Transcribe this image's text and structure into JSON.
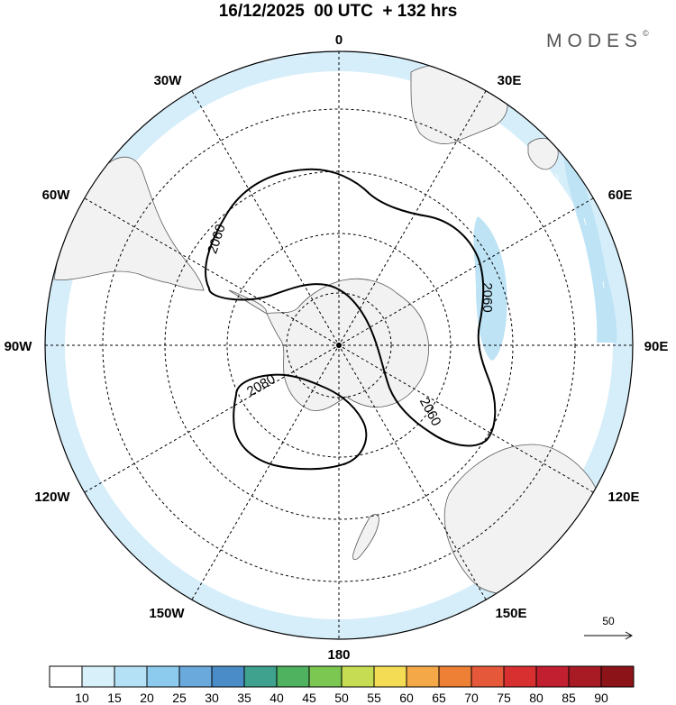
{
  "header": {
    "title": "16/12/2025  00 UTC  + 132 hrs",
    "brand": "MODES",
    "brand_mark": "©"
  },
  "map": {
    "projection": "south polar stereographic",
    "longitude_labels": {
      "lon_0": "0",
      "lon_30e": "30E",
      "lon_60e": "60E",
      "lon_90e": "90E",
      "lon_120e": "120E",
      "lon_150e": "150E",
      "lon_180": "180",
      "lon_150w": "150W",
      "lon_120w": "120W",
      "lon_90w": "90W",
      "lon_60w": "60W",
      "lon_30w": "30W"
    },
    "contour_labels": {
      "west": "2060",
      "east": "2060",
      "south": "2060",
      "low": "2080"
    },
    "wind_reference": {
      "value": "50",
      "icon": "arrow-right-icon"
    }
  },
  "colorbar": {
    "labels": [
      "10",
      "15",
      "20",
      "25",
      "30",
      "35",
      "40",
      "45",
      "50",
      "55",
      "60",
      "65",
      "70",
      "75",
      "80",
      "85",
      "90"
    ],
    "colors": [
      "#ffffff",
      "#d7f0fa",
      "#b4e1f5",
      "#8ccbee",
      "#6aa9dc",
      "#4a8cc8",
      "#3ea28e",
      "#4eb25e",
      "#7cc652",
      "#c6dc52",
      "#f4dc54",
      "#f4a848",
      "#ee8036",
      "#e6583a",
      "#d83030",
      "#c22030",
      "#a81b25",
      "#8c1418"
    ]
  },
  "colors": {
    "land": "#f2f2f2",
    "coast": "#5a5a5a",
    "wind_light": "#d6eefa",
    "wind_medium": "#bde3f5",
    "contour": "#000000"
  }
}
